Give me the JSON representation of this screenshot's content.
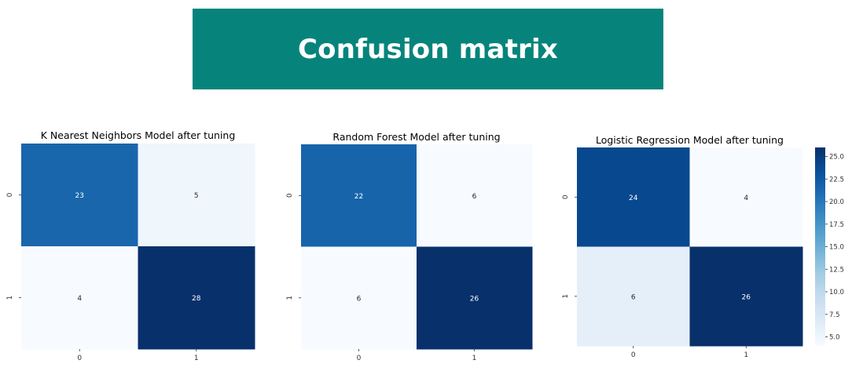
{
  "banner": {
    "title": "Confusion matrix"
  },
  "chart_data": [
    {
      "type": "heatmap",
      "title": "K Nearest Neighbors Model after tuning",
      "x_ticks": [
        "0",
        "1"
      ],
      "y_ticks": [
        "0",
        "1"
      ],
      "values": [
        [
          23,
          5
        ],
        [
          4,
          28
        ]
      ],
      "colormap": "Blues",
      "colorbar": false
    },
    {
      "type": "heatmap",
      "title": "Random Forest Model after tuning",
      "x_ticks": [
        "0",
        "1"
      ],
      "y_ticks": [
        "0",
        "1"
      ],
      "values": [
        [
          22,
          6
        ],
        [
          6,
          26
        ]
      ],
      "colormap": "Blues",
      "colorbar": false
    },
    {
      "type": "heatmap",
      "title": "Logistic Regression Model after tuning",
      "x_ticks": [
        "0",
        "1"
      ],
      "y_ticks": [
        "0",
        "1"
      ],
      "values": [
        [
          24,
          4
        ],
        [
          6,
          26
        ]
      ],
      "colormap": "Blues",
      "colorbar": true,
      "colorbar_range": [
        4,
        26
      ],
      "colorbar_ticks": [
        "5.0",
        "7.5",
        "10.0",
        "12.5",
        "15.0",
        "17.5",
        "20.0",
        "22.5",
        "25.0"
      ]
    }
  ],
  "colors": {
    "banner_bg": "#06847c",
    "banner_text": "#ffffff",
    "cmap_low": "#f7fbff",
    "cmap_high": "#08306b",
    "light_cell_text": "#262626",
    "dark_cell_text": "#ffffff"
  }
}
